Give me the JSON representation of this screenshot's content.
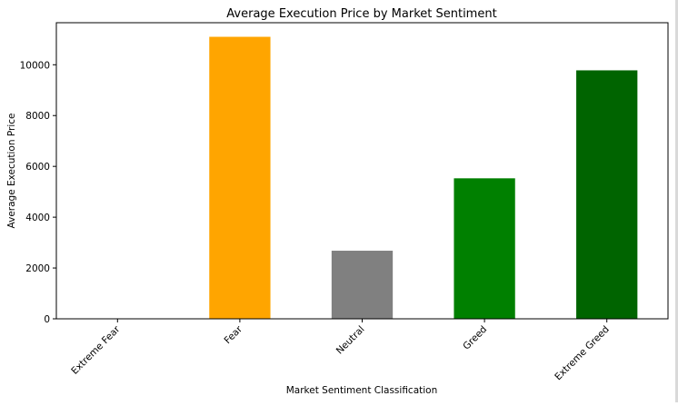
{
  "chart_data": {
    "type": "bar",
    "title": "Average Execution Price by Market Sentiment",
    "xlabel": "Market Sentiment Classification",
    "ylabel": "Average Execution Price",
    "categories": [
      "Extreme Fear",
      "Fear",
      "Neutral",
      "Greed",
      "Extreme Greed"
    ],
    "values": [
      0,
      11100,
      2680,
      5530,
      9780
    ],
    "colors": [
      "#8b0000",
      "#ffa500",
      "#808080",
      "#008000",
      "#006400"
    ],
    "ylim": [
      0,
      11655
    ],
    "yticks": [
      0,
      2000,
      4000,
      6000,
      8000,
      10000
    ],
    "ytick_labels": [
      "0",
      "2000",
      "4000",
      "6000",
      "8000",
      "10000"
    ],
    "grid": false,
    "legend": "none"
  }
}
